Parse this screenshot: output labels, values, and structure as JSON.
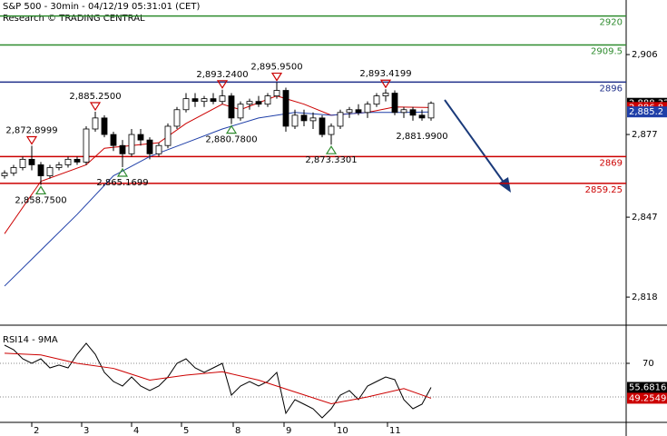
{
  "chart_data": [
    {
      "type": "candlestick",
      "title": "S&P 500 - 30min - 04/12/19 05:31:01 (CET)",
      "subtitle": "Research © TRADING CENTRAL",
      "open": [
        2862,
        2863,
        2865,
        2868,
        2866,
        2862,
        2865,
        2866,
        2868,
        2867,
        2879,
        2883,
        2877,
        2873,
        2870,
        2877,
        2875,
        2870,
        2873,
        2880,
        2886,
        2890,
        2889,
        2890,
        2889,
        2891,
        2883,
        2888,
        2889,
        2888,
        2891,
        2893,
        2880,
        2884,
        2882,
        2883,
        2877,
        2880,
        2885,
        2886,
        2885,
        2888,
        2891,
        2892,
        2885,
        2886,
        2884,
        2883
      ],
      "high": [
        2864,
        2866,
        2869,
        2872.8999,
        2867,
        2866,
        2867,
        2869,
        2869,
        2880,
        2885.25,
        2884,
        2878,
        2875,
        2879,
        2879,
        2876,
        2874,
        2881,
        2887,
        2892,
        2892,
        2891,
        2892,
        2893.24,
        2892,
        2889,
        2890,
        2891,
        2892,
        2895.95,
        2894,
        2886,
        2886,
        2885,
        2884,
        2881,
        2886,
        2887,
        2888,
        2889,
        2892,
        2893.4199,
        2893,
        2887,
        2887,
        2886,
        2889
      ],
      "low": [
        2861,
        2862,
        2864,
        2864,
        2858.75,
        2861,
        2864,
        2865,
        2866,
        2866,
        2878,
        2876,
        2871,
        2865.1699,
        2869,
        2873,
        2868,
        2869,
        2872,
        2879,
        2885,
        2887,
        2887,
        2888,
        2888,
        2880.78,
        2882,
        2886,
        2887,
        2887,
        2890,
        2878,
        2879,
        2880,
        2879,
        2876,
        2873.3301,
        2879,
        2883,
        2884,
        2883,
        2887,
        2889,
        2884,
        2883,
        2882,
        2881.99,
        2882
      ],
      "close": [
        2863,
        2865,
        2868,
        2866,
        2862,
        2865,
        2866,
        2868,
        2867,
        2879,
        2883,
        2877,
        2873,
        2870,
        2877,
        2875,
        2870,
        2873,
        2880,
        2886,
        2890,
        2889,
        2890,
        2889,
        2891,
        2883,
        2888,
        2889,
        2888,
        2891,
        2893,
        2880,
        2884,
        2882,
        2883,
        2877,
        2880,
        2885,
        2886,
        2885,
        2888,
        2891,
        2892,
        2885,
        2886,
        2884,
        2883,
        2888.32
      ],
      "last_label": "2,888.32",
      "up_color": "#ffffff",
      "down_color": "#000000",
      "averages": [
        {
          "color": "#cc0000",
          "x": [
            0,
            4,
            9,
            11,
            14,
            17,
            20,
            24,
            26,
            30,
            33,
            36,
            40,
            43,
            47
          ],
          "values": [
            2841,
            2860,
            2866,
            2872,
            2873,
            2874,
            2881,
            2888,
            2886,
            2891,
            2888,
            2884,
            2885,
            2887,
            2886.8
          ],
          "last_label": "2,886.8"
        },
        {
          "color": "#1f3fa8",
          "x": [
            0,
            4,
            8,
            12,
            16,
            20,
            24,
            28,
            32,
            36,
            40,
            44,
            47
          ],
          "values": [
            2822,
            2835,
            2848,
            2862,
            2869,
            2874,
            2879,
            2883,
            2885,
            2884,
            2885,
            2885,
            2885.2
          ],
          "last_label": "2,885.2"
        }
      ],
      "levels": [
        {
          "value": 2920,
          "color": "#2e8b2e"
        },
        {
          "value": 2909.5,
          "color": "#2e8b2e"
        },
        {
          "value": 2896,
          "color": "#1f2f8a"
        },
        {
          "value": 2869,
          "color": "#cc0000"
        },
        {
          "value": 2859.25,
          "color": "#cc0000"
        }
      ],
      "annotations": [
        {
          "x": 3,
          "value": 2872.8999,
          "label": "2,872.8999",
          "kind": "high"
        },
        {
          "x": 10,
          "value": 2885.25,
          "label": "2,885.2500",
          "kind": "high"
        },
        {
          "x": 24,
          "value": 2893.24,
          "label": "2,893.2400",
          "kind": "high"
        },
        {
          "x": 30,
          "value": 2895.95,
          "label": "2,895.9500",
          "kind": "high"
        },
        {
          "x": 42,
          "value": 2893.4199,
          "label": "2,893.4199",
          "kind": "high"
        },
        {
          "x": 4,
          "value": 2858.75,
          "label": "2,858.7500",
          "kind": "low"
        },
        {
          "x": 13,
          "value": 2865.1699,
          "label": "2,865.1699",
          "kind": "low"
        },
        {
          "x": 25,
          "value": 2880.78,
          "label": "2,880.7800",
          "kind": "low"
        },
        {
          "x": 36,
          "value": 2873.3301,
          "label": "2,873.3301",
          "kind": "low"
        },
        {
          "x": 46,
          "value": 2881.99,
          "label": "2,881.9900",
          "kind": "note"
        }
      ],
      "xlim": [
        -0.5,
        68.5
      ],
      "ylim": [
        2808.8,
        2925.8
      ],
      "yticks": [
        {
          "value": 2906,
          "label": "2,906"
        },
        {
          "value": 2877,
          "label": "2,877"
        },
        {
          "value": 2847,
          "label": "2,847"
        },
        {
          "value": 2818,
          "label": "2,818"
        }
      ]
    },
    {
      "type": "line",
      "title": "RSI14 - 9MA",
      "series": [
        {
          "color": "#000000",
          "values": [
            80.8,
            78.1,
            72.7,
            70,
            72.7,
            67.3,
            69,
            67.3,
            75.4,
            81.9,
            75.4,
            64.6,
            59.2,
            56.5,
            61.9,
            56.5,
            53.8,
            56.5,
            61.9,
            70,
            72.7,
            67.3,
            64.6,
            67.3,
            70,
            51.1,
            56.5,
            59.2,
            56.5,
            59.2,
            64.6,
            40.3,
            48.4,
            45.7,
            43,
            37.6,
            43,
            51.1,
            53.8,
            48.4,
            56.5,
            59.2,
            61.9,
            60.3,
            48.4,
            43,
            45.7,
            55.6816
          ],
          "last_label": "55.6816"
        },
        {
          "color": "#cc0000",
          "x": [
            0,
            4,
            8,
            12,
            16,
            20,
            24,
            28,
            32,
            36,
            40,
            44,
            47
          ],
          "values": [
            76,
            75,
            70,
            67,
            60,
            63,
            65,
            60,
            53,
            46,
            50,
            55,
            49.2549
          ],
          "last_label": "49.2549"
        }
      ],
      "xlim": [
        -0.5,
        68.5
      ],
      "ylim": [
        34.9,
        88.9
      ],
      "yticks": [
        70
      ],
      "gridlines": [
        70,
        50
      ],
      "xticks": [
        {
          "value": 3.0,
          "label": "2"
        },
        {
          "value": 8.5,
          "label": "3"
        },
        {
          "value": 14.0,
          "label": "4"
        },
        {
          "value": 19.5,
          "label": "5"
        },
        {
          "value": 25.2,
          "label": "8"
        },
        {
          "value": 30.8,
          "label": "9"
        },
        {
          "value": 36.4,
          "label": "10"
        },
        {
          "value": 42.2,
          "label": "11"
        }
      ]
    }
  ]
}
